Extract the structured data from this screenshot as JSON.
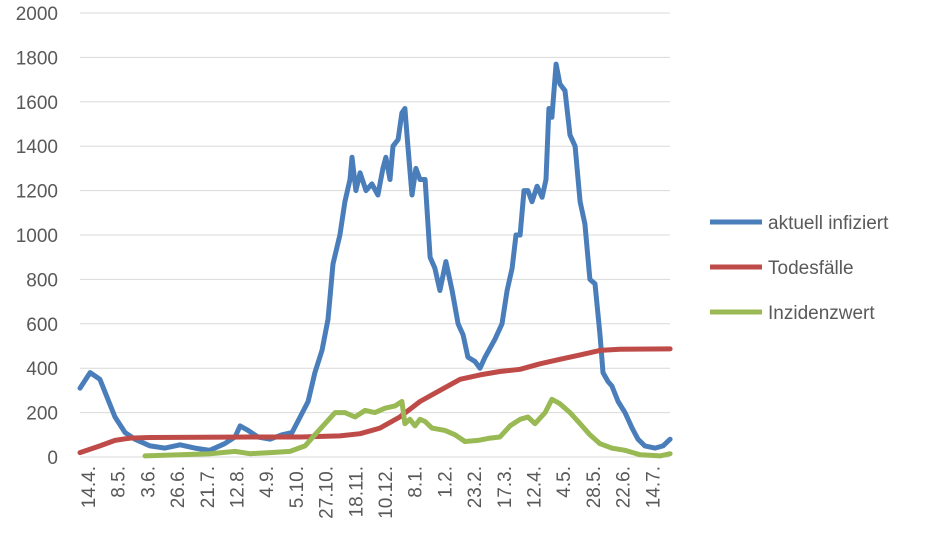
{
  "chart_data": {
    "type": "line",
    "title": "",
    "xlabel": "",
    "ylabel": "",
    "ylim": [
      0,
      2000
    ],
    "yticks": [
      0,
      200,
      400,
      600,
      800,
      1000,
      1200,
      1400,
      1600,
      1800,
      2000
    ],
    "categories": [
      "14.4.",
      "8.5.",
      "3.6.",
      "26.6.",
      "21.7.",
      "12.8.",
      "4.9.",
      "5.10.",
      "27.10.",
      "18.11.",
      "10.12.",
      "8.1.",
      "1.2.",
      "23.2.",
      "17.3.",
      "12.4.",
      "4.5.",
      "28.5.",
      "22.6.",
      "14.7."
    ],
    "grid": "horizontal",
    "legend_position": "right",
    "series": [
      {
        "name": "aktuell infiziert",
        "color": "#4a7ebb",
        "points": [
          [
            -0.27,
            310
          ],
          [
            0.07,
            380
          ],
          [
            0.4,
            350
          ],
          [
            0.67,
            260
          ],
          [
            0.91,
            180
          ],
          [
            1.25,
            110
          ],
          [
            1.58,
            80
          ],
          [
            2.09,
            50
          ],
          [
            2.59,
            40
          ],
          [
            3.1,
            55
          ],
          [
            3.6,
            40
          ],
          [
            4.1,
            30
          ],
          [
            4.6,
            60
          ],
          [
            4.95,
            90
          ],
          [
            5.12,
            140
          ],
          [
            5.39,
            120
          ],
          [
            5.72,
            90
          ],
          [
            6.13,
            80
          ],
          [
            6.53,
            100
          ],
          [
            6.87,
            110
          ],
          [
            7.14,
            180
          ],
          [
            7.41,
            250
          ],
          [
            7.64,
            380
          ],
          [
            7.88,
            480
          ],
          [
            8.08,
            620
          ],
          [
            8.25,
            870
          ],
          [
            8.48,
            1000
          ],
          [
            8.65,
            1150
          ],
          [
            8.82,
            1250
          ],
          [
            8.89,
            1350
          ],
          [
            9.02,
            1200
          ],
          [
            9.16,
            1280
          ],
          [
            9.36,
            1200
          ],
          [
            9.56,
            1230
          ],
          [
            9.76,
            1180
          ],
          [
            9.93,
            1300
          ],
          [
            10.03,
            1350
          ],
          [
            10.17,
            1250
          ],
          [
            10.27,
            1400
          ],
          [
            10.44,
            1430
          ],
          [
            10.57,
            1550
          ],
          [
            10.67,
            1570
          ],
          [
            10.77,
            1400
          ],
          [
            10.91,
            1180
          ],
          [
            11.04,
            1300
          ],
          [
            11.18,
            1250
          ],
          [
            11.35,
            1250
          ],
          [
            11.52,
            900
          ],
          [
            11.68,
            850
          ],
          [
            11.85,
            750
          ],
          [
            12.05,
            880
          ],
          [
            12.26,
            750
          ],
          [
            12.46,
            600
          ],
          [
            12.63,
            550
          ],
          [
            12.79,
            450
          ],
          [
            13.03,
            430
          ],
          [
            13.2,
            400
          ],
          [
            13.37,
            450
          ],
          [
            13.7,
            530
          ],
          [
            13.94,
            600
          ],
          [
            14.11,
            750
          ],
          [
            14.28,
            850
          ],
          [
            14.41,
            1000
          ],
          [
            14.55,
            1000
          ],
          [
            14.68,
            1200
          ],
          [
            14.81,
            1200
          ],
          [
            14.95,
            1150
          ],
          [
            15.12,
            1220
          ],
          [
            15.29,
            1170
          ],
          [
            15.42,
            1250
          ],
          [
            15.52,
            1570
          ],
          [
            15.62,
            1530
          ],
          [
            15.76,
            1770
          ],
          [
            15.89,
            1680
          ],
          [
            16.06,
            1650
          ],
          [
            16.23,
            1450
          ],
          [
            16.4,
            1400
          ],
          [
            16.57,
            1150
          ],
          [
            16.73,
            1050
          ],
          [
            16.9,
            800
          ],
          [
            17.07,
            780
          ],
          [
            17.24,
            550
          ],
          [
            17.34,
            380
          ],
          [
            17.51,
            340
          ],
          [
            17.64,
            320
          ],
          [
            17.85,
            250
          ],
          [
            18.08,
            200
          ],
          [
            18.32,
            130
          ],
          [
            18.52,
            80
          ],
          [
            18.75,
            50
          ],
          [
            19.09,
            40
          ],
          [
            19.36,
            50
          ],
          [
            19.6,
            80
          ]
        ]
      },
      {
        "name": "Todesfälle",
        "color": "#be4b48",
        "points": [
          [
            -0.27,
            20
          ],
          [
            0.4,
            50
          ],
          [
            0.91,
            75
          ],
          [
            1.41,
            85
          ],
          [
            2.09,
            88
          ],
          [
            5.45,
            90
          ],
          [
            7.14,
            90
          ],
          [
            8.48,
            95
          ],
          [
            9.16,
            105
          ],
          [
            9.83,
            130
          ],
          [
            10.5,
            180
          ],
          [
            11.18,
            250
          ],
          [
            11.85,
            300
          ],
          [
            12.53,
            350
          ],
          [
            13.2,
            370
          ],
          [
            13.87,
            385
          ],
          [
            14.55,
            395
          ],
          [
            15.22,
            420
          ],
          [
            15.89,
            440
          ],
          [
            16.57,
            460
          ],
          [
            17.24,
            480
          ],
          [
            17.91,
            485
          ],
          [
            19.6,
            487
          ]
        ]
      },
      {
        "name": "Inzidenzwert",
        "color": "#98b954",
        "points": [
          [
            1.92,
            5
          ],
          [
            3.1,
            10
          ],
          [
            4.1,
            15
          ],
          [
            4.95,
            25
          ],
          [
            5.45,
            15
          ],
          [
            6.13,
            20
          ],
          [
            6.8,
            25
          ],
          [
            7.31,
            50
          ],
          [
            7.64,
            100
          ],
          [
            7.98,
            150
          ],
          [
            8.32,
            200
          ],
          [
            8.65,
            200
          ],
          [
            8.99,
            180
          ],
          [
            9.33,
            210
          ],
          [
            9.66,
            200
          ],
          [
            10.0,
            220
          ],
          [
            10.34,
            230
          ],
          [
            10.57,
            250
          ],
          [
            10.67,
            150
          ],
          [
            10.84,
            170
          ],
          [
            11.01,
            140
          ],
          [
            11.18,
            170
          ],
          [
            11.35,
            160
          ],
          [
            11.58,
            130
          ],
          [
            12.02,
            120
          ],
          [
            12.36,
            100
          ],
          [
            12.69,
            70
          ],
          [
            13.13,
            75
          ],
          [
            13.54,
            85
          ],
          [
            13.87,
            90
          ],
          [
            14.21,
            140
          ],
          [
            14.55,
            170
          ],
          [
            14.81,
            180
          ],
          [
            15.05,
            150
          ],
          [
            15.39,
            200
          ],
          [
            15.62,
            260
          ],
          [
            15.89,
            240
          ],
          [
            16.23,
            200
          ],
          [
            16.57,
            150
          ],
          [
            16.9,
            100
          ],
          [
            17.24,
            60
          ],
          [
            17.64,
            40
          ],
          [
            18.08,
            30
          ],
          [
            18.59,
            10
          ],
          [
            19.26,
            5
          ],
          [
            19.6,
            15
          ]
        ]
      }
    ]
  }
}
